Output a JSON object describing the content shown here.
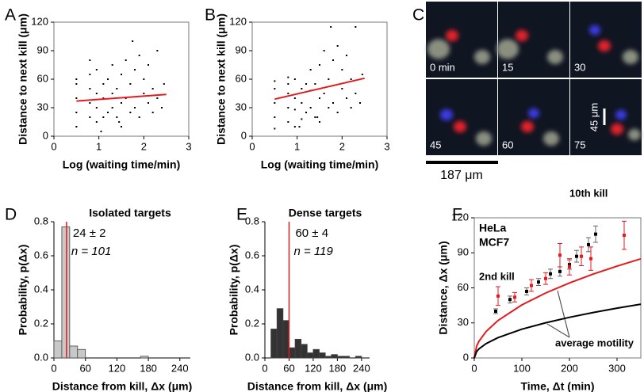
{
  "chart_data": [
    {
      "type": "scatter",
      "panel": "A",
      "xlabel": "Log (waiting time/min)",
      "ylabel": "Distance to next kill (μm)",
      "xlim": [
        0,
        3
      ],
      "xticks": [
        0,
        1,
        2,
        3
      ],
      "ylim": [
        0,
        120
      ],
      "yticks": [
        0,
        30,
        60,
        90,
        120
      ],
      "points": {
        "color": "#000000",
        "x": [
          0.5,
          0.5,
          0.5,
          0.5,
          0.5,
          0.8,
          0.8,
          0.8,
          0.8,
          0.8,
          0.95,
          0.95,
          0.95,
          0.95,
          1.1,
          1.1,
          1.1,
          1.2,
          1.2,
          1.3,
          1.3,
          1.3,
          1.4,
          1.4,
          1.5,
          1.5,
          1.5,
          1.6,
          1.6,
          1.7,
          1.7,
          1.8,
          1.8,
          1.9,
          1.9,
          2.0,
          2.0,
          2.1,
          2.1,
          2.2,
          2.2,
          2.3,
          2.3,
          2.4,
          1.75,
          1.45,
          1.05,
          2.45
        ],
        "y": [
          10,
          25,
          40,
          55,
          60,
          20,
          35,
          50,
          65,
          80,
          15,
          30,
          45,
          70,
          20,
          40,
          55,
          25,
          60,
          30,
          45,
          75,
          20,
          50,
          10,
          35,
          65,
          40,
          80,
          25,
          55,
          30,
          70,
          20,
          85,
          45,
          60,
          35,
          75,
          25,
          50,
          40,
          90,
          30,
          100,
          15,
          5,
          55
        ]
      },
      "fit": {
        "color": "#e41a1c",
        "x": [
          0.5,
          2.5
        ],
        "y": [
          37,
          44
        ]
      }
    },
    {
      "type": "scatter",
      "panel": "B",
      "xlabel": "Log (waiting time/min)",
      "ylabel": "Distance to next kill (μm)",
      "xlim": [
        0,
        3
      ],
      "xticks": [
        0,
        1,
        2,
        3
      ],
      "ylim": [
        0,
        120
      ],
      "yticks": [
        0,
        30,
        60,
        90,
        120
      ],
      "points": {
        "color": "#000000",
        "x": [
          0.5,
          0.5,
          0.5,
          0.5,
          0.5,
          0.8,
          0.8,
          0.8,
          0.8,
          0.8,
          0.95,
          0.95,
          0.95,
          0.95,
          1.1,
          1.1,
          1.1,
          1.2,
          1.2,
          1.3,
          1.3,
          1.3,
          1.4,
          1.4,
          1.5,
          1.5,
          1.5,
          1.6,
          1.6,
          1.7,
          1.7,
          1.8,
          1.8,
          1.9,
          1.9,
          2.0,
          2.0,
          2.1,
          2.1,
          2.2,
          2.2,
          2.3,
          2.3,
          2.4,
          1.75,
          1.45,
          1.05,
          2.45
        ],
        "y": [
          8,
          20,
          35,
          50,
          58,
          15,
          30,
          45,
          55,
          62,
          10,
          28,
          40,
          60,
          18,
          35,
          50,
          25,
          55,
          30,
          48,
          70,
          20,
          55,
          15,
          40,
          75,
          45,
          90,
          30,
          60,
          35,
          80,
          25,
          95,
          50,
          70,
          40,
          85,
          30,
          60,
          45,
          115,
          35,
          115,
          20,
          10,
          65
        ]
      },
      "fit": {
        "color": "#e41a1c",
        "x": [
          0.5,
          2.5
        ],
        "y": [
          39,
          61
        ]
      }
    },
    {
      "type": "image",
      "panel": "C",
      "frames": [
        "0 min",
        "15",
        "30",
        "45",
        "60",
        "75"
      ],
      "scale_bar": "187 μm",
      "frame_scale_bar": "45 μm"
    },
    {
      "type": "histogram",
      "panel": "D",
      "title": "Isolated targets",
      "title_color": "#a0a0a0",
      "xlabel": "Distance from kill, Δx (μm)",
      "ylabel": "Probability, p(Δx)",
      "bins": [
        0,
        15,
        30,
        45,
        60,
        75,
        90,
        105,
        120,
        135,
        150,
        165,
        180,
        195,
        210,
        225,
        240,
        255
      ],
      "counts": [
        0.1,
        0.77,
        0.07,
        0.05,
        0,
        0,
        0,
        0,
        0,
        0,
        0,
        0.01,
        0,
        0,
        0,
        0,
        0
      ],
      "color": "#c8c8c8",
      "mean": 24,
      "mean_label": "24 ± 2",
      "mean_color": "#e41a1c",
      "n_label": "n = 101",
      "xlim": [
        0,
        260
      ],
      "xticks": [
        0,
        60,
        120,
        180,
        240
      ],
      "ylim": [
        0,
        0.8
      ],
      "yticks": [
        {
          "value": 0,
          "label": "0.0"
        },
        0.2,
        0.4,
        0.6,
        0.8
      ]
    },
    {
      "type": "histogram",
      "panel": "E",
      "title": "Dense targets",
      "title_color": "#333333",
      "xlabel": "Distance from kill, Δx (μm)",
      "ylabel": "Probability, p(Δx)",
      "bins": [
        0,
        15,
        30,
        45,
        60,
        75,
        90,
        105,
        120,
        135,
        150,
        165,
        180,
        195,
        210,
        225,
        240,
        255
      ],
      "counts": [
        0,
        0.17,
        0.29,
        0.22,
        0.06,
        0.11,
        0.08,
        0.03,
        0.05,
        0.03,
        0.01,
        0.02,
        0.01,
        0.01,
        0,
        0.01,
        0
      ],
      "color": "#333333",
      "mean": 60,
      "mean_label": "60 ± 4",
      "mean_color": "#e41a1c",
      "n_label": "n = 119",
      "xlim": [
        0,
        260
      ],
      "xticks": [
        0,
        60,
        120,
        180,
        240
      ],
      "ylim": [
        0,
        0.8
      ],
      "yticks": [
        {
          "value": 0,
          "label": "0.0"
        },
        0.2,
        0.4,
        0.6,
        0.8
      ]
    },
    {
      "type": "errorbar",
      "panel": "F",
      "xlabel": "Time, Δt (min)",
      "ylabel": "Distance, Δx (μm)",
      "xlim": [
        0,
        350
      ],
      "xticks": [
        0,
        100,
        200,
        300
      ],
      "ylim": [
        0,
        120
      ],
      "yticks": [
        0,
        30,
        60,
        90,
        120
      ],
      "series": [
        {
          "name": "HeLa",
          "color": "#000000",
          "x": [
            45,
            75,
            110,
            135,
            160,
            180,
            200,
            215,
            240,
            255
          ],
          "values": [
            40,
            50,
            57,
            65,
            72,
            74,
            80,
            87,
            97,
            106
          ],
          "errors": [
            2,
            3,
            3,
            3,
            4,
            4,
            4,
            5,
            6,
            7
          ]
        },
        {
          "name": "MCF7",
          "color": "#e41a1c",
          "x": [
            50,
            85,
            120,
            150,
            180,
            200,
            225,
            245,
            315
          ],
          "values": [
            53,
            52,
            62,
            68,
            88,
            78,
            87,
            85,
            105
          ],
          "errors": [
            8,
            4,
            5,
            5,
            10,
            7,
            8,
            10,
            12
          ]
        }
      ],
      "curves": [
        {
          "color": "#e41a1c",
          "x": [
            0,
            5,
            10,
            25,
            50,
            100,
            150,
            200,
            250,
            300,
            350
          ],
          "values": [
            0,
            10.2,
            14.4,
            22.7,
            32.1,
            45.4,
            55.6,
            64.2,
            71.8,
            78.6,
            84.9
          ]
        },
        {
          "color": "#000000",
          "x": [
            0,
            5,
            10,
            25,
            50,
            100,
            150,
            200,
            250,
            300,
            350
          ],
          "values": [
            0,
            5.5,
            7.8,
            12.3,
            17.4,
            24.6,
            30.1,
            34.8,
            38.9,
            42.6,
            46.0
          ]
        }
      ],
      "annotations": [
        "10th kill",
        "2nd kill",
        "average motility"
      ]
    }
  ]
}
